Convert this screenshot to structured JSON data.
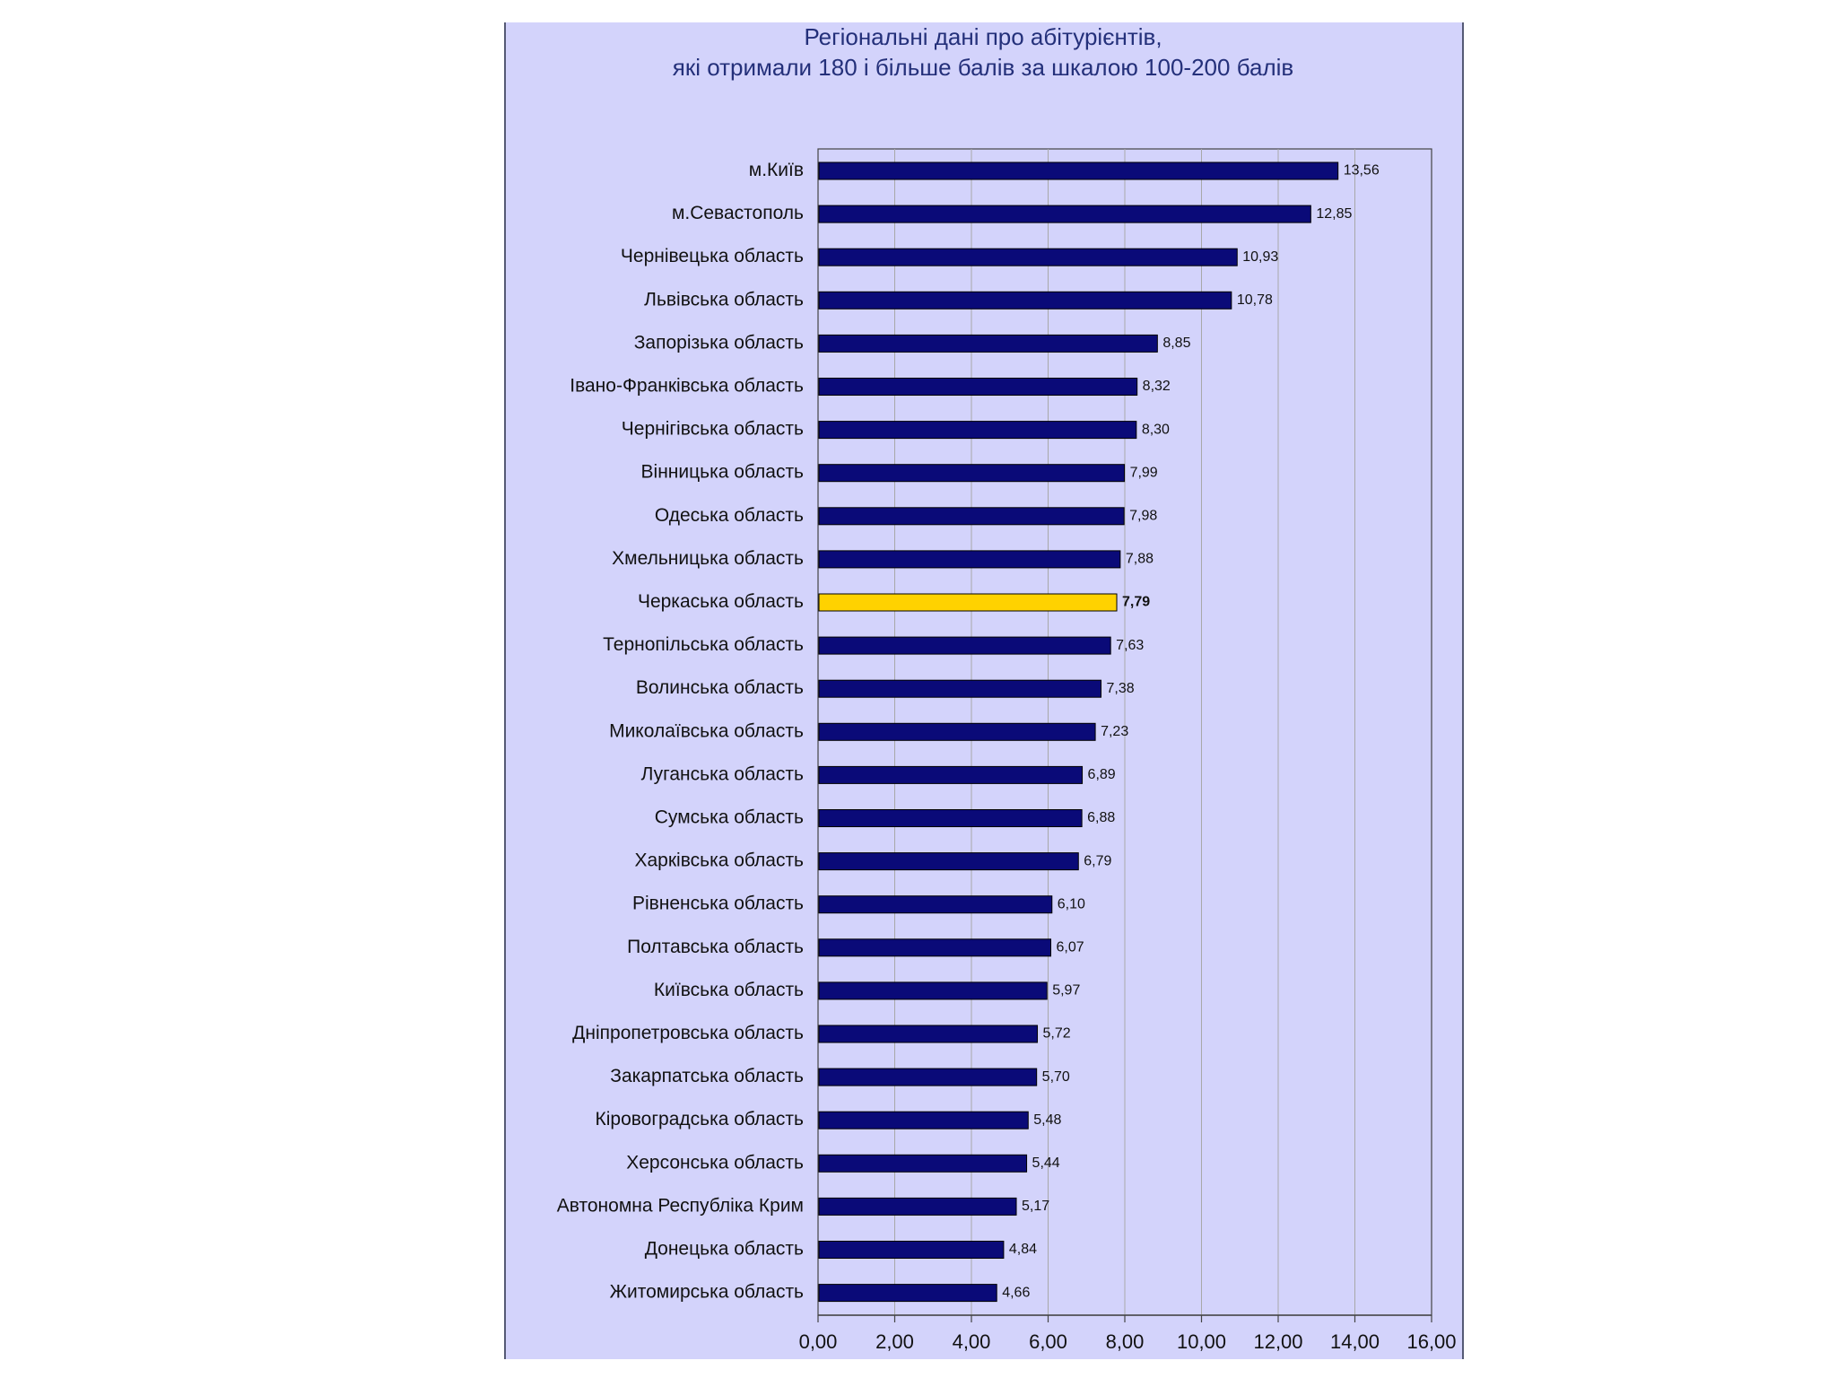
{
  "chart_data": {
    "type": "bar",
    "orientation": "horizontal",
    "title_lines": [
      "Регіональні дані про абітурієнтів,",
      "які отримали 180 і більше балів за шкалою 100-200 балів"
    ],
    "categories": [
      "м.Київ",
      "м.Севастополь",
      "Чернівецька область",
      "Львівська область",
      "Запорізька область",
      "Івано-Франківська область",
      "Чернігівська область",
      "Вінницька область",
      "Одеська область",
      "Хмельницька область",
      "Черкаська область",
      "Тернопільська область",
      "Волинська область",
      "Миколаївська область",
      "Луганська область",
      "Сумська область",
      "Харківська область",
      "Рівненська область",
      "Полтавська область",
      "Київська область",
      "Дніпропетровська область",
      "Закарпатська область",
      "Кіровоградська область",
      "Херсонська область",
      "Автономна Республіка Крим",
      "Донецька область",
      "Житомирська область"
    ],
    "values": [
      13.56,
      12.85,
      10.93,
      10.78,
      8.85,
      8.32,
      8.3,
      7.99,
      7.98,
      7.88,
      7.79,
      7.63,
      7.38,
      7.23,
      6.89,
      6.88,
      6.79,
      6.1,
      6.07,
      5.97,
      5.72,
      5.7,
      5.48,
      5.44,
      5.17,
      4.84,
      4.66
    ],
    "value_labels": [
      "13,56",
      "12,85",
      "10,93",
      "10,78",
      "8,85",
      "8,32",
      "8,30",
      "7,99",
      "7,98",
      "7,88",
      "7,79",
      "7,63",
      "7,38",
      "7,23",
      "6,89",
      "6,88",
      "6,79",
      "6,10",
      "6,07",
      "5,97",
      "5,72",
      "5,70",
      "5,48",
      "5,44",
      "5,17",
      "4,84",
      "4,66"
    ],
    "highlight_index": 10,
    "xlim": [
      0,
      16
    ],
    "xticks": [
      0,
      2,
      4,
      6,
      8,
      10,
      12,
      14,
      16
    ],
    "xtick_labels": [
      "0,00",
      "2,00",
      "4,00",
      "6,00",
      "8,00",
      "10,00",
      "12,00",
      "14,00",
      "16,00"
    ],
    "grid": "vertical",
    "xlabel": "",
    "ylabel": "",
    "colors": {
      "bar": "#0a0a78",
      "highlight": "#ffd200",
      "bar_edge": "#000000",
      "grid": "#a8a8a8",
      "axis": "#444444",
      "title": "#24307a"
    }
  }
}
